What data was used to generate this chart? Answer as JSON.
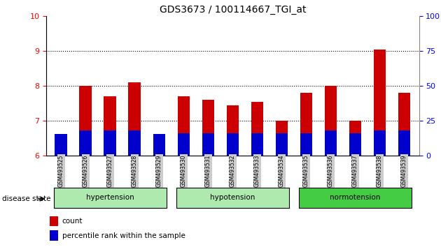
{
  "title": "GDS3673 / 100114667_TGI_at",
  "samples": [
    "GSM493525",
    "GSM493526",
    "GSM493527",
    "GSM493528",
    "GSM493529",
    "GSM493530",
    "GSM493531",
    "GSM493532",
    "GSM493533",
    "GSM493534",
    "GSM493535",
    "GSM493536",
    "GSM493537",
    "GSM493538",
    "GSM493539"
  ],
  "count_values": [
    6.45,
    8.0,
    7.7,
    8.1,
    6.45,
    7.7,
    7.6,
    7.45,
    7.55,
    7.0,
    7.8,
    8.0,
    7.0,
    9.05,
    7.8
  ],
  "percentile_values": [
    6.62,
    6.72,
    6.72,
    6.72,
    6.62,
    6.65,
    6.65,
    6.65,
    6.65,
    6.65,
    6.65,
    6.72,
    6.65,
    6.72,
    6.72
  ],
  "base": 6.0,
  "ylim_left": [
    6,
    10
  ],
  "ylim_right": [
    0,
    100
  ],
  "yticks_left": [
    6,
    7,
    8,
    9,
    10
  ],
  "yticks_right": [
    0,
    25,
    50,
    75,
    100
  ],
  "groups": [
    {
      "label": "hypertension",
      "start": 0,
      "end": 4
    },
    {
      "label": "hypotension",
      "start": 5,
      "end": 9
    },
    {
      "label": "normotension",
      "start": 10,
      "end": 14
    }
  ],
  "group_colors": [
    "#aeeaae",
    "#aeeaae",
    "#44cc44"
  ],
  "bar_width": 0.5,
  "count_color": "#cc0000",
  "percentile_color": "#0000cc",
  "grid_color": "#000000",
  "grid_levels": [
    7,
    8,
    9
  ],
  "legend_count": "count",
  "legend_pct": "percentile rank within the sample",
  "disease_state_label": "disease state"
}
